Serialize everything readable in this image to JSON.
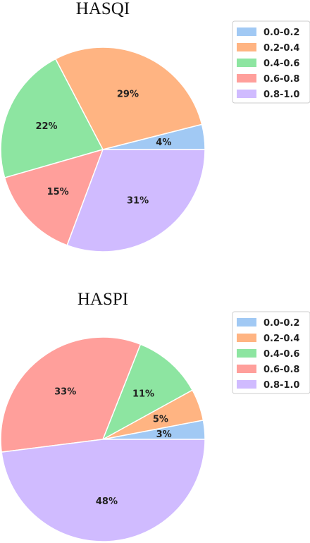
{
  "chart_data": [
    {
      "type": "pie",
      "title": "HASQI",
      "categories": [
        "0.0-0.2",
        "0.2-0.4",
        "0.4-0.6",
        "0.6-0.8",
        "0.8-1.0"
      ],
      "values": [
        4,
        29,
        22,
        15,
        31
      ],
      "labels": [
        "4%",
        "29%",
        "22%",
        "15%",
        "31%"
      ],
      "colors": [
        "#a1c9f4",
        "#ffb482",
        "#8de5a1",
        "#ff9f9b",
        "#d0bbff"
      ],
      "start_angle_deg": 0,
      "direction": "counterclockwise",
      "legend_position": "top-right"
    },
    {
      "type": "pie",
      "title": "HASPI",
      "categories": [
        "0.0-0.2",
        "0.2-0.4",
        "0.4-0.6",
        "0.6-0.8",
        "0.8-1.0"
      ],
      "values": [
        3,
        5,
        11,
        33,
        48
      ],
      "labels": [
        "3%",
        "5%",
        "11%",
        "33%",
        "48%"
      ],
      "colors": [
        "#a1c9f4",
        "#ffb482",
        "#8de5a1",
        "#ff9f9b",
        "#d0bbff"
      ],
      "start_angle_deg": 0,
      "direction": "counterclockwise",
      "legend_position": "top-right"
    }
  ]
}
